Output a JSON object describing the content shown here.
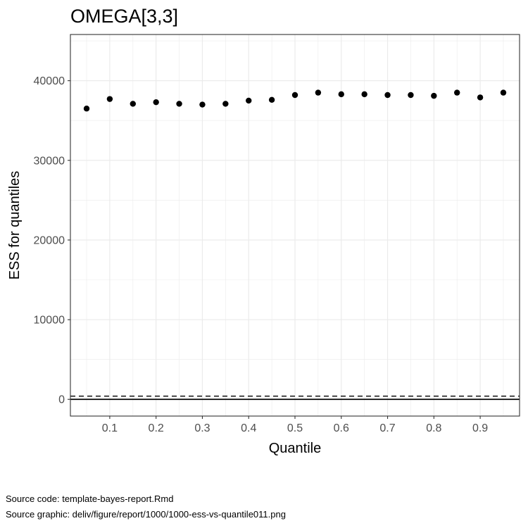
{
  "chart_data": {
    "type": "scatter",
    "title": "OMEGA[3,3]",
    "xlabel": "Quantile",
    "ylabel": "ESS for quantiles",
    "xlim": [
      0.015,
      0.985
    ],
    "ylim": [
      -2100,
      45800
    ],
    "x_ticks": [
      0.1,
      0.2,
      0.3,
      0.4,
      0.5,
      0.6,
      0.7,
      0.8,
      0.9
    ],
    "x_tick_labels": [
      "0.1",
      "0.2",
      "0.3",
      "0.4",
      "0.5",
      "0.6",
      "0.7",
      "0.8",
      "0.9"
    ],
    "y_ticks": [
      0,
      10000,
      20000,
      30000,
      40000
    ],
    "y_tick_labels": [
      "0",
      "10000",
      "20000",
      "30000",
      "40000"
    ],
    "grid": true,
    "x": [
      0.05,
      0.1,
      0.15,
      0.2,
      0.25,
      0.3,
      0.35,
      0.4,
      0.45,
      0.5,
      0.55,
      0.6,
      0.65,
      0.7,
      0.75,
      0.8,
      0.85,
      0.9,
      0.95
    ],
    "y": [
      36500,
      37700,
      37100,
      37300,
      37100,
      37000,
      37100,
      37500,
      37600,
      38200,
      38500,
      38300,
      38300,
      38200,
      38200,
      38100,
      38500,
      37900,
      38500
    ],
    "reference_lines": [
      {
        "y": 0,
        "style": "solid"
      },
      {
        "y": 400,
        "style": "dashed"
      }
    ],
    "point_color": "#000000"
  },
  "caption": {
    "source_code": "Source code: template-bayes-report.Rmd",
    "source_graphic": "Source graphic: deliv/figure/report/1000/1000-ess-vs-quantile011.png"
  }
}
